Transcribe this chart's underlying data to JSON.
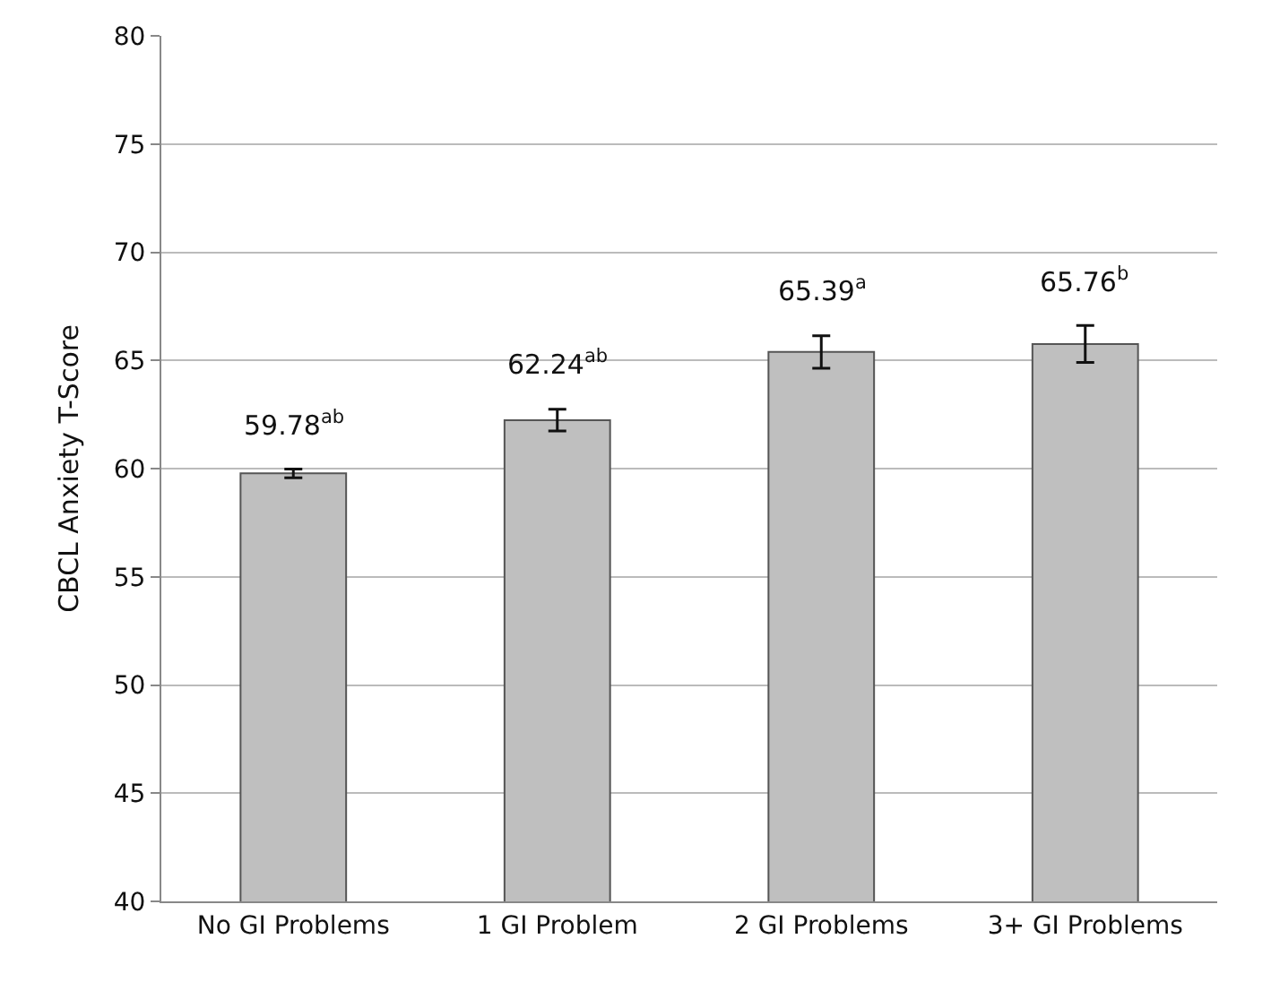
{
  "chart_data": {
    "type": "bar",
    "ylabel": "CBCL Anxiety T-Score",
    "categories": [
      "No GI Problems",
      "1 GI Problem",
      "2 GI Problems",
      "3+ GI Problems"
    ],
    "values": [
      59.78,
      62.24,
      65.39,
      65.76
    ],
    "value_labels": [
      "59.78$^{ab}$",
      "62.24$^{ab}$",
      "65.39$^{a}$",
      "65.76$^{b}$"
    ],
    "errors": [
      0.2,
      0.5,
      0.75,
      0.85
    ],
    "color": "#bfbfbf",
    "ylim": [
      40,
      80
    ],
    "yticks": [
      40,
      45,
      50,
      55,
      60,
      65,
      70,
      75,
      80
    ],
    "grid": "y"
  }
}
